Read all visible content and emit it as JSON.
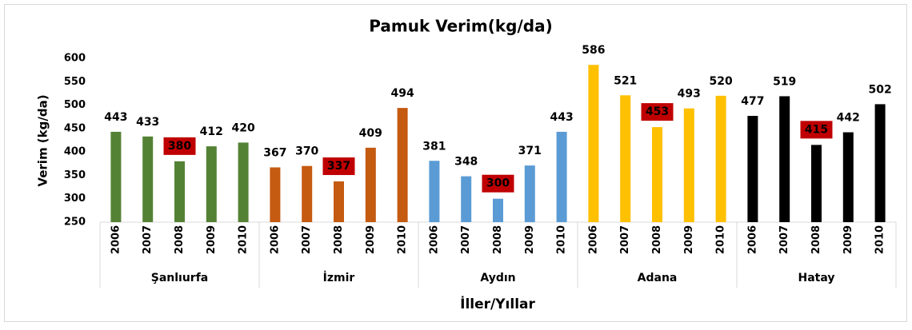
{
  "chart_data": {
    "type": "grouped-bar",
    "title": "Pamuk Verim(kg/da)",
    "y_label": "Verim (kg/da)",
    "x_label": "İller/Yıllar",
    "ylim": [
      250,
      600
    ],
    "yticks": [
      250,
      300,
      350,
      400,
      450,
      500,
      550,
      600
    ],
    "grid": false,
    "highlight": {
      "index": 2,
      "color": "#c00000"
    },
    "groups": [
      {
        "name": "Şanlıurfa",
        "color": "#548235",
        "categories": [
          "2006",
          "2007",
          "2008",
          "2009",
          "2010"
        ],
        "values": [
          443,
          433,
          380,
          412,
          420
        ]
      },
      {
        "name": "İzmir",
        "color": "#c55a11",
        "categories": [
          "2006",
          "2007",
          "2008",
          "2009",
          "2010"
        ],
        "values": [
          367,
          370,
          337,
          409,
          494
        ]
      },
      {
        "name": "Aydın",
        "color": "#5b9bd5",
        "categories": [
          "2006",
          "2007",
          "2008",
          "2009",
          "2010"
        ],
        "values": [
          381,
          348,
          300,
          371,
          443
        ]
      },
      {
        "name": "Adana",
        "color": "#ffc000",
        "categories": [
          "2006",
          "2007",
          "2008",
          "2009",
          "2010"
        ],
        "values": [
          586,
          521,
          453,
          493,
          520
        ]
      },
      {
        "name": "Hatay",
        "color": "#000000",
        "categories": [
          "2006",
          "2007",
          "2008",
          "2009",
          "2010"
        ],
        "values": [
          477,
          519,
          415,
          442,
          502
        ]
      }
    ]
  }
}
